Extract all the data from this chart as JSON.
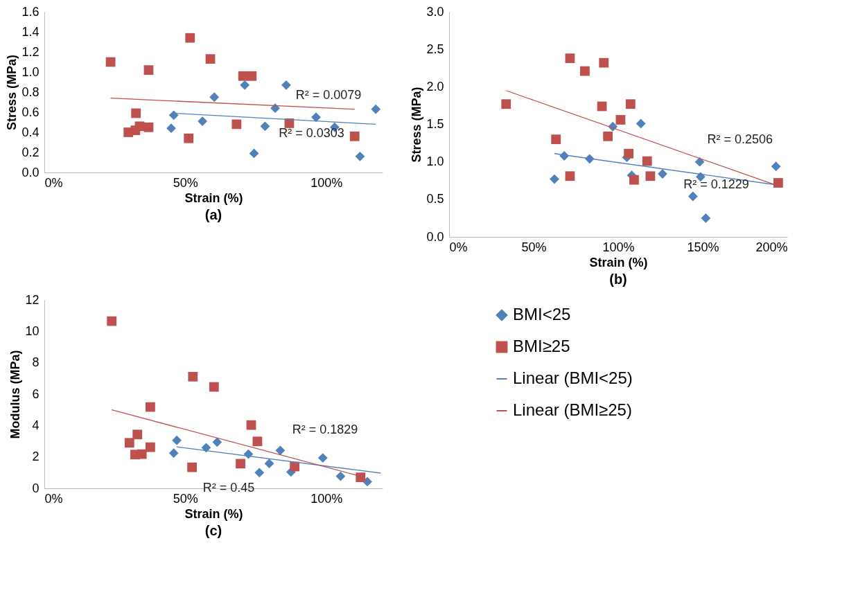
{
  "chart_data": [
    {
      "type": "scatter",
      "title": "(a)",
      "xlabel": "Strain (%)",
      "ylabel": "Stress (MPa)",
      "xlim": [
        0,
        120
      ],
      "xticks": [
        {
          "value": 0,
          "label": "0%"
        },
        {
          "value": 50,
          "label": "50%"
        },
        {
          "value": 100,
          "label": "100%"
        }
      ],
      "ylim": [
        0,
        1.6
      ],
      "yticks": [
        {
          "value": 0,
          "label": "0.0"
        },
        {
          "value": 0.2,
          "label": "0.2"
        },
        {
          "value": 0.4,
          "label": "0.4"
        },
        {
          "value": 0.6,
          "label": "0.6"
        },
        {
          "value": 0.8,
          "label": "0.8"
        },
        {
          "value": 1.0,
          "label": "1.0"
        },
        {
          "value": 1.2,
          "label": "1.2"
        },
        {
          "value": 1.4,
          "label": "1.4"
        },
        {
          "value": 1.6,
          "label": "1.6"
        }
      ],
      "grid": false,
      "series": [
        {
          "color": "#4f81bd",
          "marker": "diamond",
          "x": [
            71.1,
            85.8,
            60.3,
            81.9,
            117.6,
            45.9,
            56.1,
            96.4,
            45.0,
            78.3,
            103.0,
            74.4,
            112.0
          ],
          "values": [
            0.87,
            0.87,
            0.75,
            0.64,
            0.63,
            0.57,
            0.51,
            0.55,
            0.44,
            0.46,
            0.45,
            0.19,
            0.16
          ]
        },
        {
          "color": "#c0504d",
          "marker": "square",
          "x": [
            23.5,
            51.7,
            58.9,
            37.0,
            70.5,
            73.6,
            32.5,
            29.8,
            32.3,
            33.8,
            37.0,
            51.2,
            68.2,
            86.9,
            110.1
          ],
          "values": [
            1.1,
            1.34,
            1.13,
            1.02,
            0.96,
            0.96,
            0.59,
            0.4,
            0.42,
            0.46,
            0.45,
            0.34,
            0.48,
            0.49,
            0.36
          ]
        },
        {
          "type": "line",
          "color": "#4f81bd",
          "x": [
            45.9,
            117.6
          ],
          "values": [
            0.59,
            0.48
          ]
        },
        {
          "type": "line",
          "color": "#c0504d",
          "x": [
            23.5,
            110.1
          ],
          "values": [
            0.74,
            0.63
          ]
        }
      ],
      "annotations": [
        "R² = 0.0079",
        "R² = 0.0303"
      ]
    },
    {
      "type": "scatter",
      "title": "(b)",
      "xlabel": "Strain (%)",
      "ylabel": "Stress (MPa)",
      "xlim": [
        0,
        200
      ],
      "xticks": [
        {
          "value": 0,
          "label": "0%"
        },
        {
          "value": 50,
          "label": "50%"
        },
        {
          "value": 100,
          "label": "100%"
        },
        {
          "value": 150,
          "label": "150%"
        },
        {
          "value": 200,
          "label": "200%"
        }
      ],
      "ylim": [
        0,
        3.0
      ],
      "yticks": [
        {
          "value": 0,
          "label": "0.0"
        },
        {
          "value": 0.5,
          "label": "0.5"
        },
        {
          "value": 1.0,
          "label": "1.0"
        },
        {
          "value": 1.5,
          "label": "1.5"
        },
        {
          "value": 2.0,
          "label": "2.0"
        },
        {
          "value": 2.5,
          "label": "2.5"
        },
        {
          "value": 3.0,
          "label": "3.0"
        }
      ],
      "grid": false,
      "series": [
        {
          "color": "#4f81bd",
          "marker": "diamond",
          "x": [
            62.3,
            68.1,
            83.1,
            96.8,
            113.4,
            105.1,
            108.0,
            126.2,
            148.2,
            148.7,
            144.2,
            151.8,
            193.3
          ],
          "values": [
            0.77,
            1.08,
            1.04,
            1.47,
            1.51,
            1.06,
            0.82,
            0.84,
            1.0,
            0.8,
            0.54,
            0.25,
            0.94
          ]
        },
        {
          "color": "#c0504d",
          "marker": "square",
          "x": [
            33.7,
            71.5,
            80.3,
            91.5,
            90.4,
            107.3,
            101.4,
            93.9,
            63.2,
            106.2,
            117.1,
            71.5,
            109.4,
            119.0,
            194.6
          ],
          "values": [
            1.77,
            2.38,
            2.21,
            2.32,
            1.74,
            1.77,
            1.56,
            1.34,
            1.3,
            1.11,
            1.01,
            0.81,
            0.76,
            0.81,
            0.72
          ]
        },
        {
          "type": "line",
          "color": "#4f81bd",
          "x": [
            62.3,
            194.6
          ],
          "values": [
            1.11,
            0.69
          ]
        },
        {
          "type": "line",
          "color": "#c0504d",
          "x": [
            33.7,
            194.6
          ],
          "values": [
            1.95,
            0.68
          ]
        }
      ],
      "annotations": [
        "R² = 0.2506",
        "R² = 0.1229"
      ]
    },
    {
      "type": "scatter",
      "title": "(c)",
      "xlabel": "Strain (%)",
      "ylabel": "Modulus (MPa)",
      "xlim": [
        0,
        120
      ],
      "xticks": [
        {
          "value": 0,
          "label": "0%"
        },
        {
          "value": 50,
          "label": "50%"
        },
        {
          "value": 100,
          "label": "100%"
        }
      ],
      "ylim": [
        0,
        12
      ],
      "yticks": [
        0,
        2,
        4,
        6,
        8,
        10,
        12
      ],
      "grid": false,
      "legend": "right",
      "series": [
        {
          "name": "BMI<25",
          "color": "#4f81bd",
          "marker": "diamond",
          "x": [
            47.0,
            45.9,
            57.4,
            61.3,
            72.4,
            79.8,
            76.3,
            83.7,
            87.5,
            98.8,
            105.1,
            114.6
          ],
          "values": [
            3.06,
            2.24,
            2.59,
            2.94,
            2.18,
            1.58,
            1.0,
            2.41,
            1.04,
            1.94,
            0.77,
            0.42
          ]
        },
        {
          "name": "BMI≥25",
          "color": "#c0504d",
          "marker": "square",
          "x": [
            23.9,
            52.7,
            60.2,
            37.6,
            73.4,
            75.6,
            30.2,
            33.0,
            32.2,
            34.6,
            37.6,
            52.4,
            69.6,
            88.8,
            112.2
          ],
          "values": [
            10.65,
            7.11,
            6.46,
            5.18,
            4.03,
            2.99,
            2.9,
            3.43,
            2.15,
            2.18,
            2.62,
            1.34,
            1.57,
            1.39,
            0.7
          ]
        },
        {
          "name": "Linear (BMI<25)",
          "type": "line",
          "color": "#4f81bd",
          "x": [
            47.0,
            119.3
          ],
          "values": [
            2.64,
            0.97
          ]
        },
        {
          "name": "Linear (BMI≥25)",
          "type": "line",
          "color": "#c0504d",
          "x": [
            23.9,
            112.2
          ],
          "values": [
            5.0,
            0.77
          ]
        }
      ],
      "annotations": [
        "R² = 0.1829",
        "R² = 0.45"
      ]
    }
  ]
}
